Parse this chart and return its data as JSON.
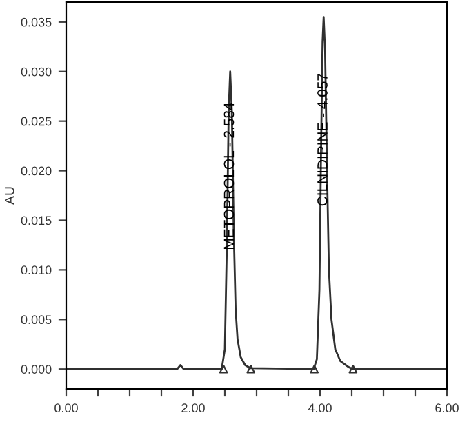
{
  "chart_data": {
    "type": "line",
    "ylabel": "AU",
    "xlim": [
      0,
      6
    ],
    "ylim": [
      -0.002,
      0.037
    ],
    "xticks": [
      {
        "value": 0,
        "label": "0.00"
      },
      {
        "value": 0.5,
        "label": null
      },
      {
        "value": 1,
        "label": null
      },
      {
        "value": 1.5,
        "label": null
      },
      {
        "value": 2,
        "label": "2.00"
      },
      {
        "value": 2.5,
        "label": null
      },
      {
        "value": 3,
        "label": null
      },
      {
        "value": 3.5,
        "label": null
      },
      {
        "value": 4,
        "label": "4.00"
      },
      {
        "value": 4.5,
        "label": null
      },
      {
        "value": 5,
        "label": null
      },
      {
        "value": 5.5,
        "label": null
      },
      {
        "value": 6,
        "label": "6.00"
      }
    ],
    "yticks": [
      {
        "value": 0,
        "label": "0.000"
      },
      {
        "value": 0.005,
        "label": "0.005"
      },
      {
        "value": 0.01,
        "label": "0.010"
      },
      {
        "value": 0.015,
        "label": "0.015"
      },
      {
        "value": 0.02,
        "label": "0.020"
      },
      {
        "value": 0.025,
        "label": "0.025"
      },
      {
        "value": 0.03,
        "label": "0.030"
      },
      {
        "value": 0.035,
        "label": "0.035"
      }
    ],
    "grid": false,
    "series": [
      {
        "color": "#303030",
        "x": [
          0,
          1.0,
          1.75,
          1.8,
          1.85,
          2.45,
          2.5,
          2.53,
          2.56,
          2.584,
          2.61,
          2.64,
          2.67,
          2.7,
          2.75,
          2.82,
          2.9,
          3.9,
          3.95,
          3.99,
          4.02,
          4.04,
          4.057,
          4.08,
          4.11,
          4.14,
          4.18,
          4.24,
          4.32,
          4.45,
          4.52,
          6.0
        ],
        "values": [
          0,
          0,
          0,
          0.0004,
          0,
          0,
          0.002,
          0.012,
          0.026,
          0.03,
          0.026,
          0.014,
          0.006,
          0.003,
          0.0012,
          0.0004,
          0.0001,
          0,
          0.001,
          0.008,
          0.024,
          0.033,
          0.0355,
          0.032,
          0.02,
          0.01,
          0.005,
          0.002,
          0.0008,
          0.0002,
          0,
          0
        ]
      },
      {
        "type": "scatter",
        "color": "#303030",
        "marker": "triangle",
        "x": [
          2.48,
          2.91,
          3.91,
          4.52
        ],
        "values": [
          0,
          0,
          0,
          0
        ]
      }
    ],
    "annotations": [
      {
        "text": "METOPROLOL - 2.584",
        "x": 2.584,
        "y": 0.012
      },
      {
        "text": "CILNIDIPINE - 4.057",
        "x": 4.057,
        "y": 0.0164
      }
    ]
  }
}
